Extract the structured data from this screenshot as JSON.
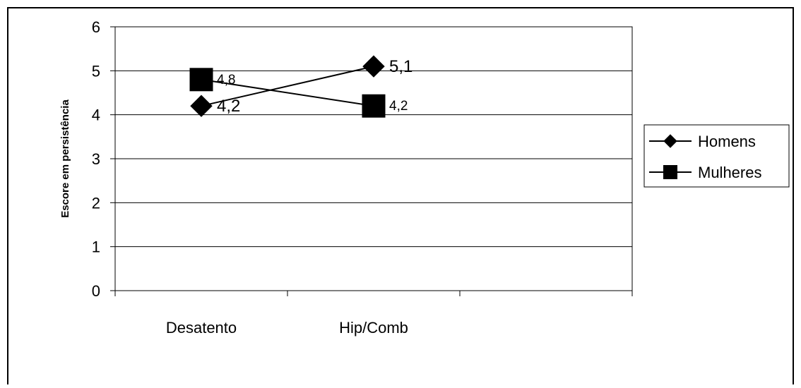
{
  "chart_data": {
    "type": "line",
    "categories": [
      "Desatento",
      "Hip/Comb"
    ],
    "series": [
      {
        "name": "Homens",
        "values": [
          4.2,
          5.1
        ],
        "labels": [
          "4,2",
          "5,1"
        ],
        "marker": "diamond"
      },
      {
        "name": "Mulheres",
        "values": [
          4.8,
          4.2
        ],
        "labels": [
          "4,8",
          "4,2"
        ],
        "marker": "square"
      }
    ],
    "title": "",
    "xlabel": "",
    "ylabel": "Escore em persistência",
    "ylim": [
      0,
      6
    ],
    "yticks": [
      "0",
      "1",
      "2",
      "3",
      "4",
      "5",
      "6"
    ],
    "grid": true,
    "legend_position": "right",
    "colors": {
      "line": "#000000",
      "marker": "#000000",
      "grid": "#000000",
      "background": "#ffffff"
    }
  }
}
